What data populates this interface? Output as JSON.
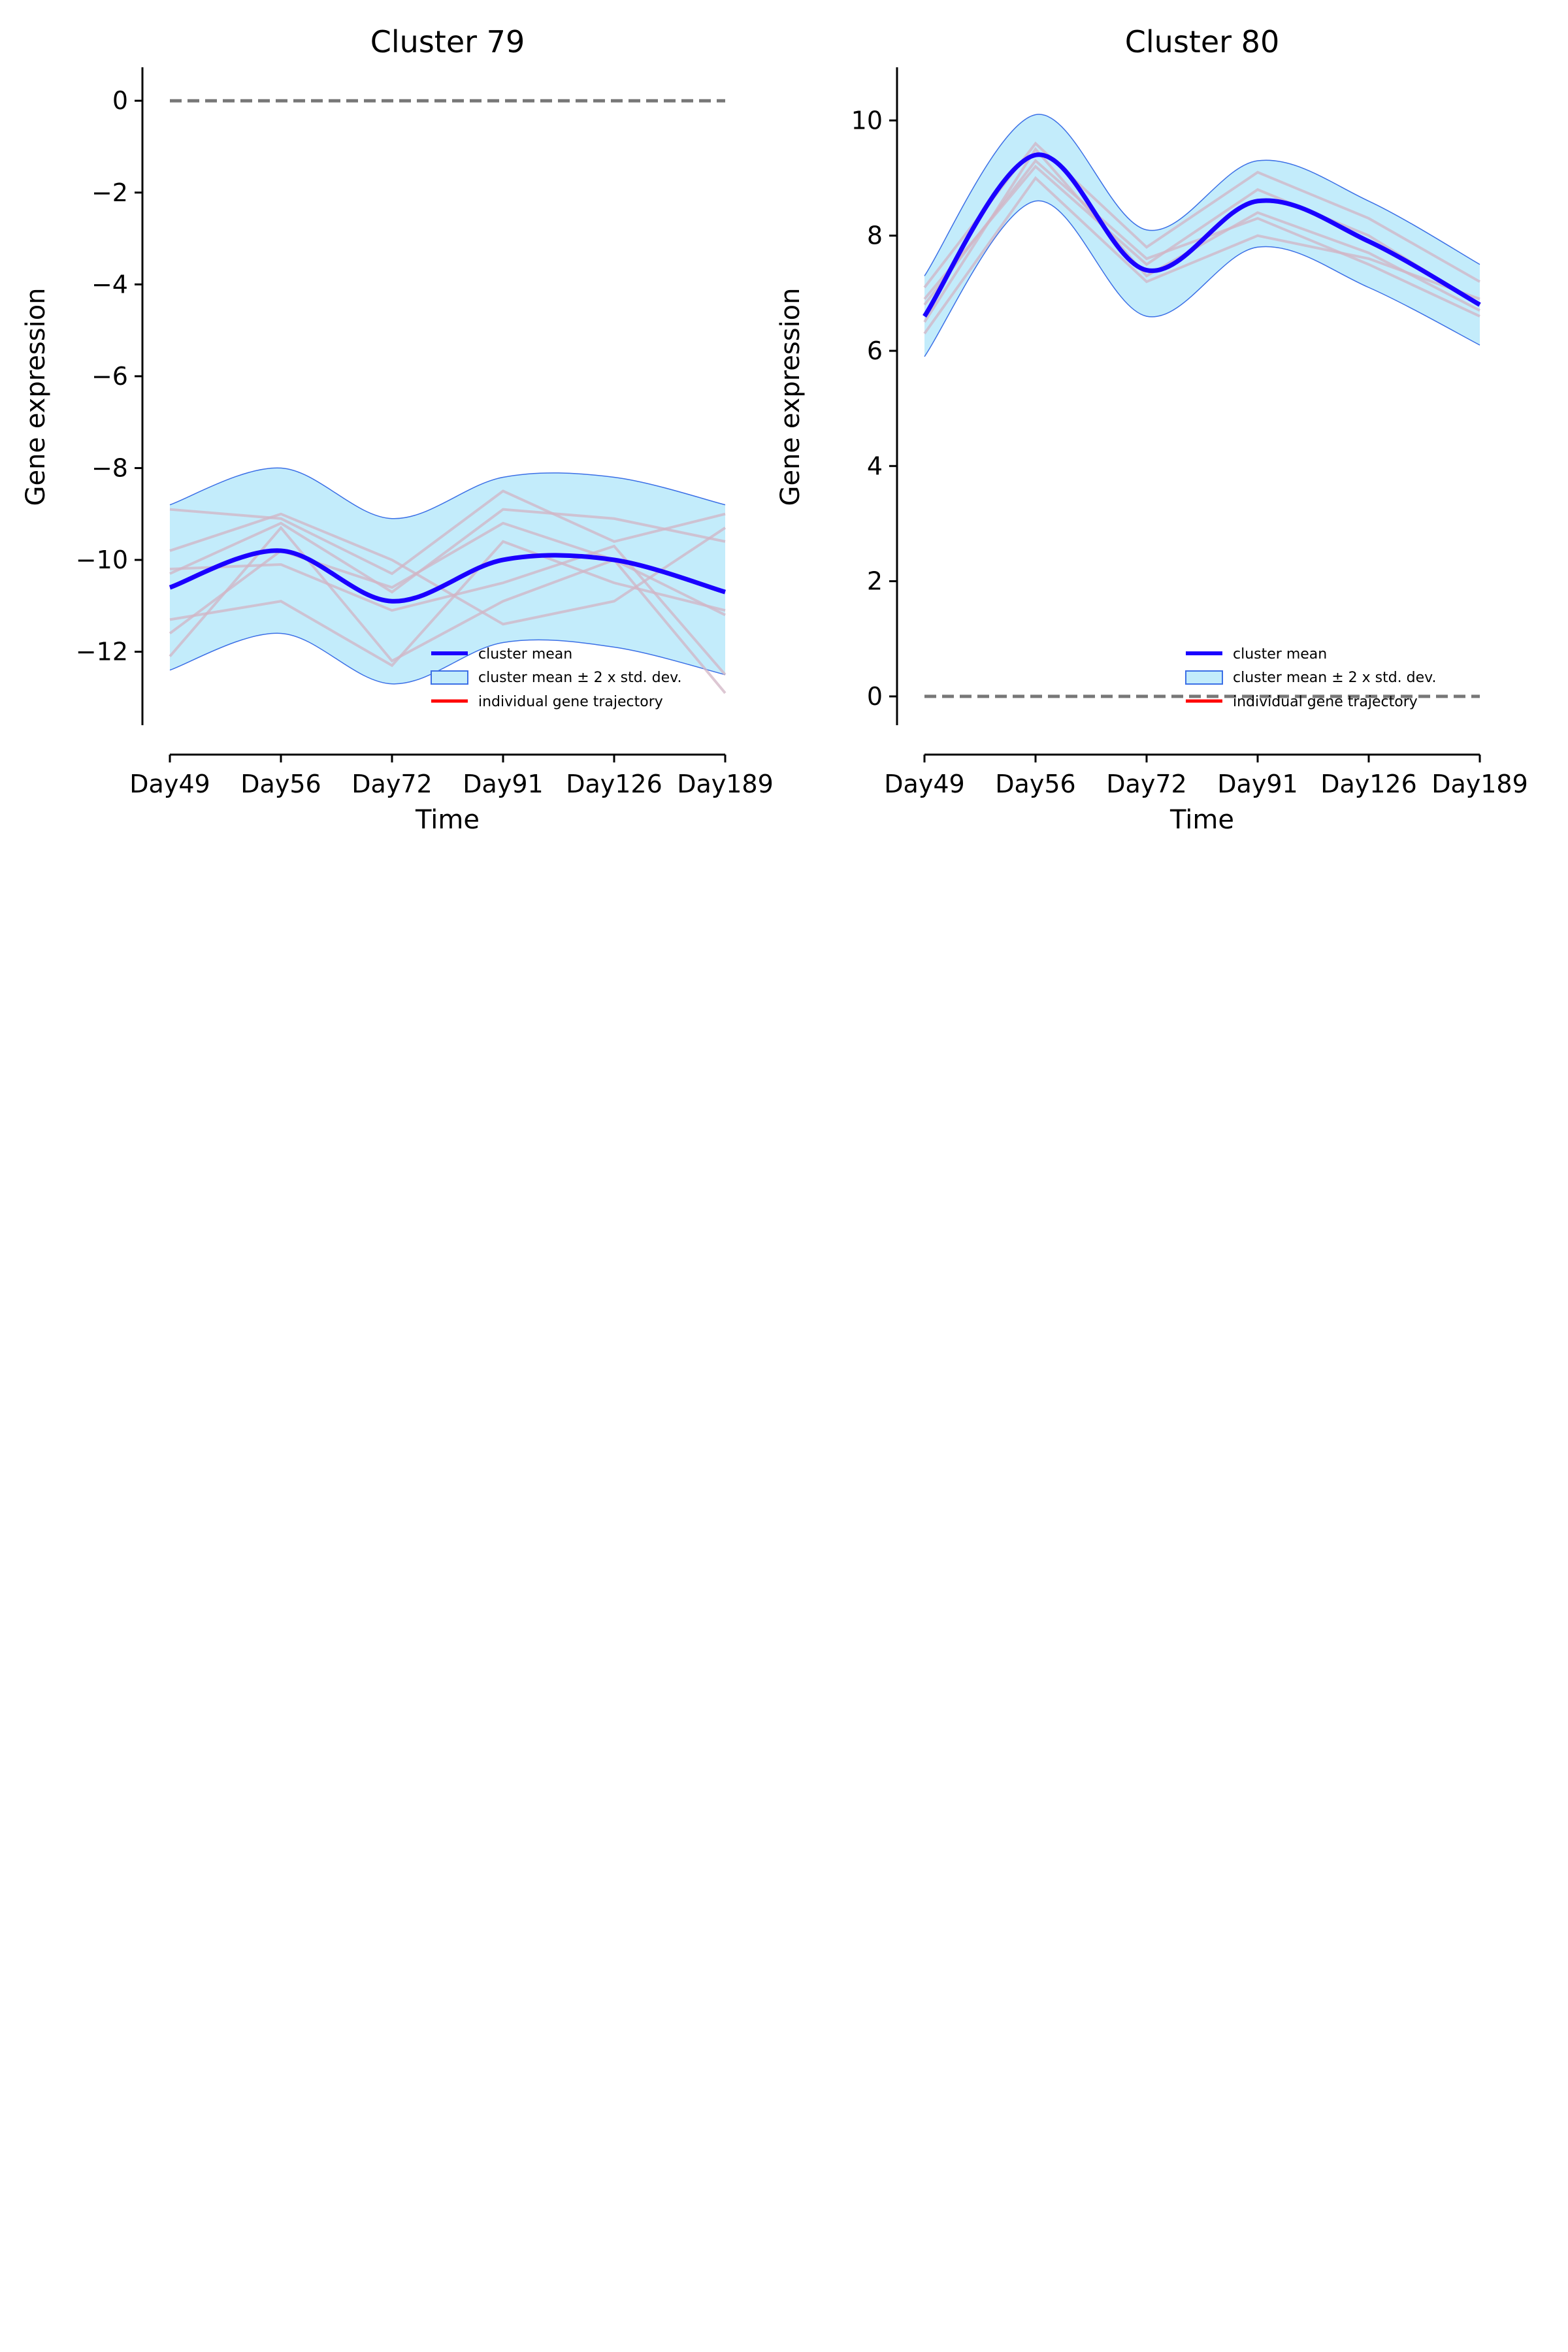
{
  "colors": {
    "mean_line": "#1a00ff",
    "band_fill": "#c3ecfb",
    "band_edge": "#3b6fe6",
    "individual": "#d2b4c4",
    "legend_individual": "#ff0000",
    "zero_line": "#777777"
  },
  "legend": {
    "mean": "cluster mean",
    "band": "cluster mean ± 2 x std. dev.",
    "individual": "individual gene trajectory",
    "placement": "lower-right"
  },
  "chart_data": [
    {
      "type": "line",
      "title": "Cluster 79",
      "xlabel": "Time",
      "ylabel": "Gene expression",
      "categories": [
        "Day49",
        "Day56",
        "Day72",
        "Day91",
        "Day126",
        "Day189"
      ],
      "ylim": [
        -13.6,
        0.7
      ],
      "yticks": [
        0,
        -2,
        -4,
        -6,
        -8,
        -10,
        -12
      ],
      "ytick_labels": [
        "0",
        "−2",
        "−4",
        "−6",
        "−8",
        "−10",
        "−12"
      ],
      "grid": false,
      "zero_line": 0,
      "series": [
        {
          "role": "mean",
          "name": "cluster mean",
          "values": [
            -10.6,
            -9.8,
            -10.9,
            -10.0,
            -10.0,
            -10.7
          ]
        },
        {
          "role": "band_upper",
          "values": [
            -8.8,
            -8.0,
            -9.1,
            -8.2,
            -8.2,
            -8.8
          ]
        },
        {
          "role": "band_lower",
          "values": [
            -12.4,
            -11.6,
            -12.7,
            -11.8,
            -11.9,
            -12.5
          ]
        },
        {
          "role": "individual",
          "values": [
            -8.9,
            -9.1,
            -10.3,
            -8.5,
            -9.6,
            -9.0
          ]
        },
        {
          "role": "individual",
          "values": [
            -9.8,
            -9.0,
            -10.0,
            -11.4,
            -10.9,
            -9.3
          ]
        },
        {
          "role": "individual",
          "values": [
            -10.2,
            -10.1,
            -11.1,
            -10.5,
            -9.7,
            -12.5
          ]
        },
        {
          "role": "individual",
          "values": [
            -11.3,
            -10.9,
            -12.3,
            -9.6,
            -10.5,
            -11.1
          ]
        },
        {
          "role": "individual",
          "values": [
            -12.1,
            -9.3,
            -12.2,
            -10.9,
            -10.0,
            -11.2
          ]
        },
        {
          "role": "individual",
          "values": [
            -11.6,
            -9.8,
            -10.6,
            -9.2,
            -10.0,
            -12.9
          ]
        },
        {
          "role": "individual",
          "values": [
            -10.3,
            -9.2,
            -10.7,
            -8.9,
            -9.1,
            -9.6
          ]
        }
      ]
    },
    {
      "type": "line",
      "title": "Cluster 80",
      "xlabel": "Time",
      "ylabel": "Gene expression",
      "categories": [
        "Day49",
        "Day56",
        "Day72",
        "Day91",
        "Day126",
        "Day189"
      ],
      "ylim": [
        -0.5,
        10.9
      ],
      "yticks": [
        0,
        2,
        4,
        6,
        8,
        10
      ],
      "ytick_labels": [
        "0",
        "2",
        "4",
        "6",
        "8",
        "10"
      ],
      "grid": false,
      "zero_line": 0,
      "series": [
        {
          "role": "mean",
          "name": "cluster mean",
          "values": [
            6.6,
            9.4,
            7.4,
            8.6,
            7.9,
            6.8
          ]
        },
        {
          "role": "band_upper",
          "values": [
            7.3,
            10.1,
            8.1,
            9.3,
            8.6,
            7.5
          ]
        },
        {
          "role": "band_lower",
          "values": [
            5.9,
            8.6,
            6.6,
            7.8,
            7.1,
            6.1
          ]
        },
        {
          "role": "individual",
          "values": [
            6.9,
            9.2,
            7.5,
            8.8,
            8.0,
            6.8
          ]
        },
        {
          "role": "individual",
          "values": [
            6.5,
            9.5,
            7.3,
            8.4,
            7.7,
            6.7
          ]
        },
        {
          "role": "individual",
          "values": [
            7.1,
            9.6,
            7.8,
            9.1,
            8.3,
            7.2
          ]
        },
        {
          "role": "individual",
          "values": [
            6.3,
            9.0,
            7.2,
            8.0,
            7.6,
            6.9
          ]
        },
        {
          "role": "individual",
          "values": [
            6.8,
            9.3,
            7.6,
            8.3,
            7.5,
            6.6
          ]
        }
      ]
    }
  ]
}
